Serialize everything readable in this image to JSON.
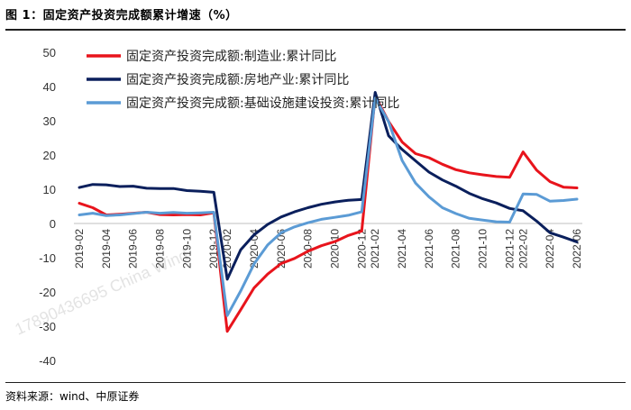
{
  "header": {
    "title": "图 1：固定资产投资完成额累计增速（%）"
  },
  "footer": {
    "source": "资料来源：wind、中原证券"
  },
  "watermark": "17890436695 China Wind",
  "chart_data": {
    "type": "line",
    "title": "",
    "xlabel": "",
    "ylabel": "",
    "ylim": [
      -40,
      50
    ],
    "yticks": [
      50,
      40,
      30,
      20,
      10,
      0,
      -10,
      -20,
      -30,
      -40
    ],
    "grid": false,
    "legend": "top-left",
    "x": [
      "2019-02",
      "2019-03",
      "2019-04",
      "2019-05",
      "2019-06",
      "2019-07",
      "2019-08",
      "2019-09",
      "2019-10",
      "2019-11",
      "2019-12",
      "2020-02",
      "2020-03",
      "2020-04",
      "2020-05",
      "2020-06",
      "2020-07",
      "2020-08",
      "2020-09",
      "2020-10",
      "2020-11",
      "2020-12",
      "2021-02",
      "2021-03",
      "2021-04",
      "2021-05",
      "2021-06",
      "2021-07",
      "2021-08",
      "2021-09",
      "2021-10",
      "2021-11",
      "2021-12",
      "2022-02",
      "2022-03",
      "2022-04",
      "2022-05",
      "2022-06"
    ],
    "xtick_labels": [
      "2019-02",
      "2019-04",
      "2019-06",
      "2019-08",
      "2019-10",
      "2019-12",
      "2020-02",
      "2020-04",
      "2020-06",
      "2020-08",
      "2020-10",
      "2020-12",
      "2021-02",
      "2021-04",
      "2021-06",
      "2021-08",
      "2021-10",
      "2021-12",
      "2022-02",
      "2022-04",
      "2022-06"
    ],
    "series": [
      {
        "name": "固定资产投资完成额:制造业:累计同比",
        "color": "#e8141c",
        "values": [
          5.9,
          4.6,
          2.5,
          2.7,
          3.0,
          3.3,
          2.6,
          2.5,
          2.6,
          2.5,
          3.1,
          -31.5,
          -25.2,
          -18.8,
          -14.8,
          -11.7,
          -10.2,
          -8.1,
          -6.5,
          -5.3,
          -3.5,
          -2.2,
          37.3,
          29.8,
          23.8,
          20.4,
          19.2,
          17.3,
          15.7,
          14.8,
          14.2,
          13.7,
          13.5,
          20.9,
          15.6,
          12.2,
          10.6,
          10.4
        ]
      },
      {
        "name": "固定资产投资完成额:房地产业:累计同比",
        "color": "#0a1f5c",
        "values": [
          10.5,
          11.4,
          11.3,
          10.8,
          10.9,
          10.3,
          10.2,
          10.2,
          9.6,
          9.4,
          9.1,
          -16.3,
          -7.7,
          -3.3,
          -0.3,
          1.9,
          3.4,
          4.6,
          5.6,
          6.3,
          6.8,
          7.0,
          38.3,
          25.6,
          21.6,
          18.3,
          15.0,
          12.7,
          10.9,
          8.8,
          7.2,
          6.0,
          4.4,
          3.7,
          0.7,
          -2.7,
          -4.0,
          -5.4
        ]
      },
      {
        "name": "固定资产投资完成额:基础设施建设投资:累计同比",
        "color": "#5b9bd5",
        "values": [
          2.5,
          3.0,
          2.3,
          2.5,
          2.9,
          3.3,
          3.0,
          3.2,
          3.0,
          3.1,
          3.3,
          -26.9,
          -19.7,
          -11.8,
          -6.3,
          -2.7,
          -1.0,
          0.2,
          1.2,
          1.8,
          2.4,
          3.4,
          36.6,
          29.7,
          18.4,
          11.8,
          7.8,
          4.6,
          2.9,
          1.5,
          1.0,
          0.5,
          0.4,
          8.6,
          8.5,
          6.5,
          6.7,
          7.1
        ]
      }
    ]
  }
}
